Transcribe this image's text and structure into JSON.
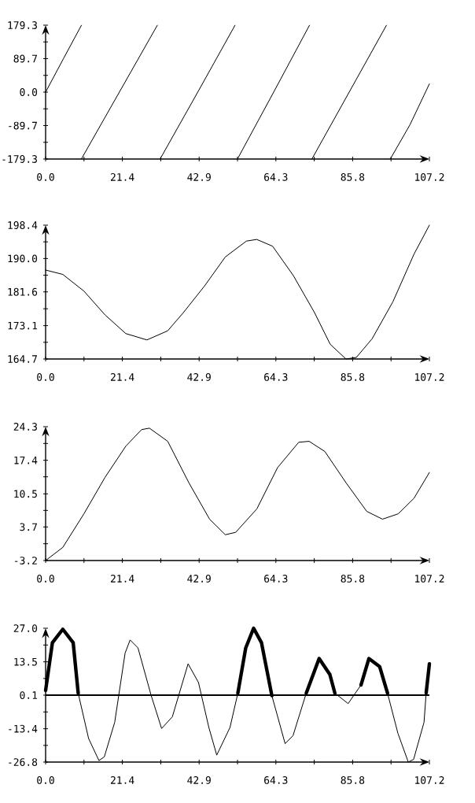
{
  "chart_data": [
    {
      "type": "line",
      "xlim": [
        0,
        107.2
      ],
      "ylim": [
        -179.3,
        179.3
      ],
      "xticks": [
        {
          "value": 0,
          "label": "0.0"
        },
        {
          "value": 10.72,
          "label": null
        },
        {
          "value": 21.44,
          "label": "21.4"
        },
        {
          "value": 32.16,
          "label": null
        },
        {
          "value": 42.88,
          "label": "42.9"
        },
        {
          "value": 53.6,
          "label": null
        },
        {
          "value": 64.32,
          "label": "64.3"
        },
        {
          "value": 75.04,
          "label": null
        },
        {
          "value": 85.76,
          "label": "85.8"
        },
        {
          "value": 96.48,
          "label": null
        },
        {
          "value": 107.2,
          "label": "107.2"
        }
      ],
      "yticks": [
        {
          "value": -179.3,
          "label": "-179.3"
        },
        {
          "value": -134.5,
          "label": null
        },
        {
          "value": -89.7,
          "label": "-89.7"
        },
        {
          "value": -44.8,
          "label": null
        },
        {
          "value": 0,
          "label": "0.0"
        },
        {
          "value": 44.8,
          "label": null
        },
        {
          "value": 89.7,
          "label": "89.7"
        },
        {
          "value": 134.5,
          "label": null
        },
        {
          "value": 179.3,
          "label": "179.3"
        }
      ],
      "series": [
        {
          "color": "#000000",
          "x": [
            0,
            5,
            10
          ],
          "values": [
            0,
            90,
            179
          ]
        },
        {
          "color": "#000000",
          "x": [
            10,
            20.6,
            31.2
          ],
          "values": [
            -179,
            0,
            179
          ]
        },
        {
          "color": "#000000",
          "x": [
            32,
            42.5,
            52.9
          ],
          "values": [
            -179,
            0,
            179
          ]
        },
        {
          "color": "#000000",
          "x": [
            53.6,
            63.7,
            73.7
          ],
          "values": [
            -179,
            0,
            179
          ]
        },
        {
          "color": "#000000",
          "x": [
            74.4,
            84.8,
            95.2
          ],
          "values": [
            -179,
            0,
            179
          ]
        },
        {
          "color": "#000000",
          "x": [
            96.3,
            101.8,
            107.2
          ],
          "values": [
            -179,
            -87,
            22
          ]
        }
      ]
    },
    {
      "type": "line",
      "xlim": [
        0,
        107.2
      ],
      "ylim": [
        164.7,
        198.4
      ],
      "xticks": [
        {
          "value": 0,
          "label": "0.0"
        },
        {
          "value": 10.72,
          "label": null
        },
        {
          "value": 21.44,
          "label": "21.4"
        },
        {
          "value": 32.16,
          "label": null
        },
        {
          "value": 42.88,
          "label": "42.9"
        },
        {
          "value": 53.6,
          "label": null
        },
        {
          "value": 64.32,
          "label": "64.3"
        },
        {
          "value": 75.04,
          "label": null
        },
        {
          "value": 85.76,
          "label": "85.8"
        },
        {
          "value": 96.48,
          "label": null
        },
        {
          "value": 107.2,
          "label": "107.2"
        }
      ],
      "yticks": [
        {
          "value": 164.7,
          "label": "164.7"
        },
        {
          "value": 168.9,
          "label": null
        },
        {
          "value": 173.1,
          "label": "173.1"
        },
        {
          "value": 177.35,
          "label": null
        },
        {
          "value": 181.6,
          "label": "181.6"
        },
        {
          "value": 185.8,
          "label": null
        },
        {
          "value": 190.0,
          "label": "190.0"
        },
        {
          "value": 194.2,
          "label": null
        },
        {
          "value": 198.4,
          "label": "198.4"
        }
      ],
      "x": [
        0,
        4.8,
        10.7,
        16.6,
        22.4,
        28.3,
        34.1,
        38.5,
        44.4,
        50.2,
        56.1,
        59.0,
        63.4,
        69.2,
        75.1,
        79.5,
        83.9,
        86.8,
        91.2,
        97.0,
        102.9,
        107.2
      ],
      "series": [
        {
          "color": "#000000",
          "values": [
            187.1,
            186.0,
            181.8,
            175.8,
            171.1,
            169.5,
            171.8,
            176.4,
            183.1,
            190.4,
            194.4,
            194.8,
            193.1,
            185.7,
            176.4,
            168.4,
            164.7,
            165.1,
            169.8,
            179.1,
            191.1,
            198.4
          ]
        }
      ]
    },
    {
      "type": "line",
      "xlim": [
        0,
        107.2
      ],
      "ylim": [
        -3.2,
        24.3
      ],
      "xticks": [
        {
          "value": 0,
          "label": "0.0"
        },
        {
          "value": 10.72,
          "label": null
        },
        {
          "value": 21.44,
          "label": "21.4"
        },
        {
          "value": 32.16,
          "label": null
        },
        {
          "value": 42.88,
          "label": "42.9"
        },
        {
          "value": 53.6,
          "label": null
        },
        {
          "value": 64.32,
          "label": "64.3"
        },
        {
          "value": 75.04,
          "label": null
        },
        {
          "value": 85.76,
          "label": "85.8"
        },
        {
          "value": 96.48,
          "label": null
        },
        {
          "value": 107.2,
          "label": "107.2"
        }
      ],
      "yticks": [
        {
          "value": -3.2,
          "label": "-3.2"
        },
        {
          "value": 0.25,
          "label": null
        },
        {
          "value": 3.7,
          "label": "3.7"
        },
        {
          "value": 7.1,
          "label": null
        },
        {
          "value": 10.5,
          "label": "10.5"
        },
        {
          "value": 14.0,
          "label": null
        },
        {
          "value": 17.4,
          "label": "17.4"
        },
        {
          "value": 20.85,
          "label": null
        },
        {
          "value": 24.3,
          "label": "24.3"
        }
      ],
      "x": [
        0,
        4.8,
        10.7,
        16.6,
        22.4,
        26.8,
        29.0,
        34.1,
        40.0,
        45.8,
        50.2,
        53.1,
        59.0,
        64.8,
        70.7,
        73.6,
        78.0,
        83.9,
        89.7,
        94.1,
        98.5,
        102.9,
        107.2
      ],
      "series": [
        {
          "color": "#000000",
          "values": [
            -3.2,
            -0.5,
            6.4,
            13.9,
            20.3,
            23.7,
            24.0,
            21.3,
            12.8,
            5.3,
            2.1,
            2.6,
            7.4,
            15.9,
            21.1,
            21.3,
            19.2,
            12.8,
            6.9,
            5.3,
            6.4,
            9.6,
            14.9
          ]
        }
      ]
    },
    {
      "type": "line",
      "xlim": [
        0,
        107.2
      ],
      "ylim": [
        -26.8,
        27.0
      ],
      "xticks": [
        {
          "value": 0,
          "label": "0.0"
        },
        {
          "value": 10.72,
          "label": null
        },
        {
          "value": 21.44,
          "label": "21.4"
        },
        {
          "value": 32.16,
          "label": null
        },
        {
          "value": 42.88,
          "label": "42.9"
        },
        {
          "value": 53.6,
          "label": null
        },
        {
          "value": 64.32,
          "label": "64.3"
        },
        {
          "value": 75.04,
          "label": null
        },
        {
          "value": 85.76,
          "label": "85.8"
        },
        {
          "value": 96.48,
          "label": null
        },
        {
          "value": 107.2,
          "label": "107.2"
        }
      ],
      "yticks": [
        {
          "value": -26.8,
          "label": "-26.8"
        },
        {
          "value": -20.1,
          "label": null
        },
        {
          "value": -13.4,
          "label": "-13.4"
        },
        {
          "value": -6.65,
          "label": null
        },
        {
          "value": 0.1,
          "label": "0.1"
        },
        {
          "value": 6.8,
          "label": null
        },
        {
          "value": 13.5,
          "label": "13.5"
        },
        {
          "value": 20.25,
          "label": null
        },
        {
          "value": 27.0,
          "label": "27.0"
        }
      ],
      "ref_lines": [
        {
          "axis": "y",
          "value": 0.1,
          "color": "#000000"
        }
      ],
      "x": [
        0,
        1.9,
        4.8,
        7.7,
        9.1,
        12.0,
        14.9,
        16.4,
        19.3,
        22.2,
        23.6,
        25.8,
        29.5,
        32.4,
        35.4,
        39.8,
        42.7,
        45.6,
        47.8,
        51.5,
        53.7,
        55.9,
        58.1,
        60.3,
        63.2,
        66.9,
        69.1,
        72.8,
        76.4,
        79.4,
        80.8,
        84.5,
        88.1,
        90.3,
        93.3,
        95.5,
        98.4,
        101.3,
        102.8,
        105.7,
        106.3,
        107.2
      ],
      "series": [
        {
          "color": "#000000",
          "values": [
            2.0,
            21.2,
            26.6,
            21.2,
            0.9,
            -17.3,
            -26.2,
            -24.7,
            -10.8,
            17.0,
            22.3,
            19.1,
            -0.1,
            -13.3,
            -8.6,
            12.7,
            5.2,
            -12.9,
            -24.0,
            -12.9,
            0.9,
            19.1,
            27.0,
            21.2,
            -0.1,
            -19.4,
            -16.2,
            0.9,
            14.8,
            8.4,
            0.9,
            -3.3,
            4.2,
            14.8,
            11.6,
            0.9,
            -15.2,
            -26.8,
            -25.7,
            -10.8,
            1.0,
            12.7
          ]
        },
        {
          "color": "#000000",
          "values": [
            2.0,
            21.2,
            26.6,
            21.2,
            0.9,
            null,
            null,
            null,
            null,
            null,
            null,
            null,
            null,
            null,
            null,
            null,
            null,
            null,
            null,
            null,
            0.9,
            19.1,
            27.0,
            21.2,
            -0.1,
            null,
            null,
            0.9,
            14.8,
            8.4,
            0.9,
            null,
            4.2,
            14.8,
            11.6,
            0.9,
            null,
            null,
            null,
            null,
            1.0,
            12.7
          ]
        }
      ]
    }
  ]
}
